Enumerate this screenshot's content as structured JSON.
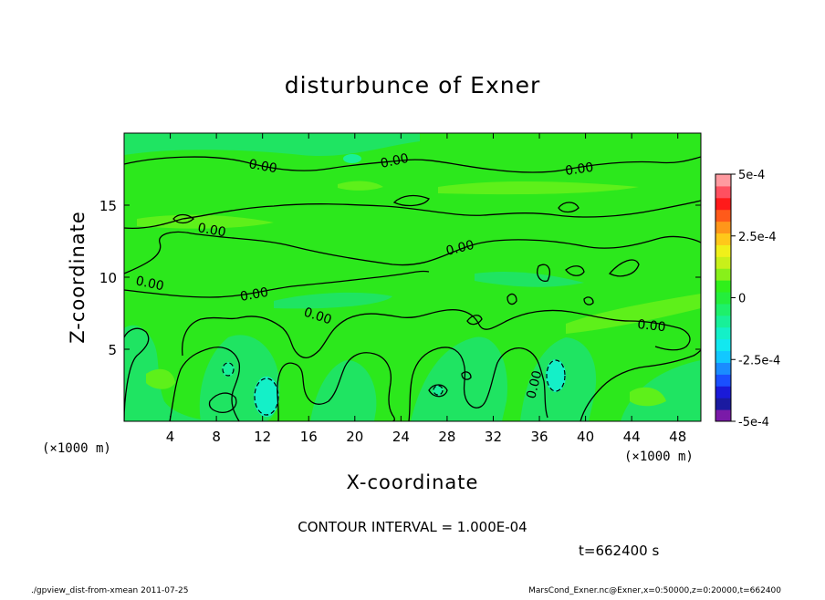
{
  "chart_data": {
    "type": "heatmap",
    "title": "disturbunce of Exner",
    "xlabel": "X-coordinate",
    "ylabel": "Z-coordinate",
    "x_unit": "(×1000 m)",
    "xlim": [
      0,
      50
    ],
    "ylim": [
      0,
      20
    ],
    "x_ticks": [
      4,
      8,
      12,
      16,
      20,
      24,
      28,
      32,
      36,
      40,
      44,
      48
    ],
    "y_ticks": [
      5,
      10,
      15
    ],
    "colorbar": {
      "range": [
        -0.0005,
        0.0005
      ],
      "tick_labels": [
        "5e-4",
        "2.5e-4",
        "0",
        "-2.5e-4",
        "-5e-4"
      ],
      "tick_values": [
        0.0005,
        0.00025,
        0,
        -0.00025,
        -0.0005
      ],
      "levels": [
        {
          "value": -0.0005,
          "color": "#7a1aa8"
        },
        {
          "value": -0.00045,
          "color": "#1a1aa0"
        },
        {
          "value": -0.0004,
          "color": "#1a1ad8"
        },
        {
          "value": -0.00035,
          "color": "#1a50ff"
        },
        {
          "value": -0.0003,
          "color": "#1a8cff"
        },
        {
          "value": -0.00025,
          "color": "#12c8ff"
        },
        {
          "value": -0.0002,
          "color": "#12e8f0"
        },
        {
          "value": -0.00015,
          "color": "#14f0c8"
        },
        {
          "value": -0.0001,
          "color": "#18f098"
        },
        {
          "value": -5e-05,
          "color": "#1ef06a"
        },
        {
          "value": 0,
          "color": "#24ee3c"
        },
        {
          "value": 5e-05,
          "color": "#30f01a"
        },
        {
          "value": 0.0001,
          "color": "#88f01a"
        },
        {
          "value": 0.00015,
          "color": "#c8f01a"
        },
        {
          "value": 0.0002,
          "color": "#f0f01a"
        },
        {
          "value": 0.00025,
          "color": "#ffc81a"
        },
        {
          "value": 0.0003,
          "color": "#ff961a"
        },
        {
          "value": 0.00035,
          "color": "#ff5a1a"
        },
        {
          "value": 0.0004,
          "color": "#ff1a1a"
        },
        {
          "value": 0.00045,
          "color": "#ff5060"
        },
        {
          "value": 0.0005,
          "color": "#ff9aa0"
        }
      ]
    },
    "contour_label": "0.00",
    "contour_interval": "CONTOUR INTERVAL = 1.000E-04",
    "time": "t=662400 s"
  },
  "footer": {
    "left": "./gpview_dist-from-xmean  2011-07-25",
    "right": "MarsCond_Exner.nc@Exner,x=0:50000,z=0:20000,t=662400"
  }
}
